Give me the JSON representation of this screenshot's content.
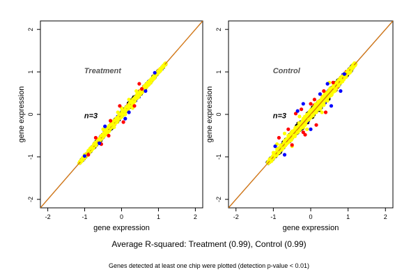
{
  "figure": {
    "caption_main": "Average R-squared: Treatment (0.99), Control (0.99)",
    "caption_sub": "Genes detected at least one chip were plotted (detection p-value < 0.01)"
  },
  "colors": {
    "identity_line": "#8B4513",
    "fit_line": "#FF8C00",
    "cloud_edge": "#000000",
    "outlier_red": "#FF0000",
    "outlier_blue": "#0000FF",
    "points_yellow": "#FFFF00"
  },
  "chart_data": [
    {
      "type": "scatter",
      "title": "",
      "label": "Treatment",
      "annotation": "n=3",
      "xlabel": "gene expression",
      "ylabel": "gene expression",
      "xlim": [
        -2.2,
        2.2
      ],
      "ylim": [
        -2.2,
        2.2
      ],
      "xticks": [
        -2,
        -1,
        0,
        1,
        2
      ],
      "yticks": [
        -2,
        -1,
        0,
        1,
        2
      ],
      "grid": false,
      "legend": "none",
      "reference_lines": [
        {
          "name": "identity",
          "slope": 1,
          "intercept": 0
        }
      ],
      "cloud_range": [
        -1.15,
        1.2
      ],
      "cloud_spread": 0.1,
      "series": [
        {
          "color": "yellow",
          "x": [
            -1.1,
            -1.05,
            -1.0,
            -0.95,
            -0.9,
            -0.85,
            -0.8,
            -0.75,
            -0.7,
            -0.65,
            -0.6,
            -0.55,
            -0.5,
            -0.45,
            -0.4,
            -0.35,
            -0.3,
            -0.25,
            -0.2,
            -0.15,
            -0.1,
            -0.05,
            0.0,
            0.05,
            0.1,
            0.15,
            0.2,
            0.25,
            0.3,
            0.35,
            0.4,
            0.45,
            0.5,
            0.55,
            0.6,
            0.65,
            0.7,
            0.75,
            0.8,
            0.85,
            0.9,
            0.95,
            1.0,
            1.05,
            1.1,
            1.15,
            -0.3,
            -0.2,
            -0.1,
            0.0,
            0.1,
            0.2,
            0.3,
            -0.5,
            0.4
          ],
          "y": [
            -1.08,
            -1.02,
            -0.95,
            -0.98,
            -0.85,
            -0.8,
            -0.78,
            -0.7,
            -0.68,
            -0.6,
            -0.58,
            -0.5,
            -0.48,
            -0.42,
            -0.38,
            -0.3,
            -0.25,
            -0.22,
            -0.15,
            -0.12,
            -0.08,
            0.0,
            0.02,
            0.08,
            0.1,
            0.18,
            0.2,
            0.28,
            0.3,
            0.38,
            0.4,
            0.45,
            0.52,
            0.55,
            0.62,
            0.66,
            0.72,
            0.75,
            0.82,
            0.85,
            0.92,
            0.95,
            1.0,
            1.04,
            1.1,
            1.14,
            -0.15,
            -0.3,
            0.05,
            0.15,
            0.0,
            0.35,
            0.15,
            -0.35,
            0.55
          ]
        },
        {
          "color": "red",
          "x": [
            -0.7,
            -0.55,
            -0.35,
            -0.3,
            -0.05,
            0.05,
            0.35,
            0.48,
            0.55,
            -0.9
          ],
          "y": [
            -0.55,
            -0.7,
            -0.5,
            -0.15,
            0.2,
            -0.18,
            0.2,
            0.72,
            0.6,
            -0.95
          ]
        },
        {
          "color": "blue",
          "x": [
            -0.6,
            -0.45,
            0.2,
            0.65,
            0.9,
            -1.0,
            0.1
          ],
          "y": [
            -0.68,
            -0.28,
            0.05,
            0.55,
            0.98,
            -0.98,
            -0.1
          ]
        }
      ]
    },
    {
      "type": "scatter",
      "title": "",
      "label": "Control",
      "annotation": "n=3",
      "xlabel": "gene expression",
      "ylabel": "gene expression",
      "xlim": [
        -2.2,
        2.2
      ],
      "ylim": [
        -2.2,
        2.2
      ],
      "xticks": [
        -2,
        -1,
        0,
        1,
        2
      ],
      "yticks": [
        -2,
        -1,
        0,
        1,
        2
      ],
      "grid": false,
      "legend": "none",
      "reference_lines": [
        {
          "name": "identity",
          "slope": 1,
          "intercept": 0
        }
      ],
      "cloud_range": [
        -1.15,
        1.2
      ],
      "cloud_spread": 0.16,
      "series": [
        {
          "color": "yellow",
          "x": [
            -1.1,
            -1.05,
            -1.0,
            -0.95,
            -0.9,
            -0.85,
            -0.8,
            -0.75,
            -0.7,
            -0.65,
            -0.6,
            -0.55,
            -0.5,
            -0.45,
            -0.4,
            -0.35,
            -0.3,
            -0.25,
            -0.2,
            -0.15,
            -0.1,
            -0.05,
            0.0,
            0.05,
            0.1,
            0.15,
            0.2,
            0.25,
            0.3,
            0.35,
            0.4,
            0.45,
            0.5,
            0.55,
            0.6,
            0.65,
            0.7,
            0.75,
            0.8,
            0.85,
            0.9,
            0.95,
            1.0,
            1.05,
            1.1,
            1.15,
            -0.7,
            -0.5,
            -0.3,
            -0.1,
            0.1,
            0.3,
            -0.9,
            0.5
          ],
          "y": [
            -1.05,
            -1.1,
            -0.9,
            -0.98,
            -0.82,
            -0.9,
            -0.72,
            -0.8,
            -0.62,
            -0.7,
            -0.5,
            -0.62,
            -0.4,
            -0.5,
            -0.32,
            -0.42,
            -0.22,
            -0.32,
            -0.1,
            -0.25,
            0.0,
            -0.12,
            0.1,
            -0.02,
            0.18,
            0.05,
            0.3,
            0.12,
            0.38,
            0.22,
            0.5,
            0.32,
            0.58,
            0.45,
            0.65,
            0.55,
            0.75,
            0.68,
            0.82,
            0.78,
            0.9,
            0.88,
            1.0,
            0.98,
            1.08,
            1.12,
            -0.45,
            -0.75,
            -0.05,
            -0.35,
            0.35,
            0.05,
            -0.7,
            0.75
          ]
        },
        {
          "color": "red",
          "x": [
            -0.85,
            -0.6,
            -0.5,
            -0.25,
            -0.2,
            0.0,
            0.15,
            0.35,
            0.4,
            0.6,
            -0.15,
            -0.4,
            0.1
          ],
          "y": [
            -0.55,
            -0.35,
            -0.72,
            0.12,
            -0.42,
            0.25,
            -0.25,
            0.55,
            0.05,
            0.75,
            -0.48,
            0.02,
            0.35
          ]
        },
        {
          "color": "blue",
          "x": [
            -0.95,
            -0.7,
            -0.35,
            0.0,
            0.25,
            0.55,
            0.8,
            0.9,
            -0.2,
            0.45
          ],
          "y": [
            -0.75,
            -0.95,
            0.08,
            -0.35,
            0.48,
            0.2,
            0.55,
            0.95,
            0.25,
            0.72
          ]
        }
      ]
    }
  ]
}
